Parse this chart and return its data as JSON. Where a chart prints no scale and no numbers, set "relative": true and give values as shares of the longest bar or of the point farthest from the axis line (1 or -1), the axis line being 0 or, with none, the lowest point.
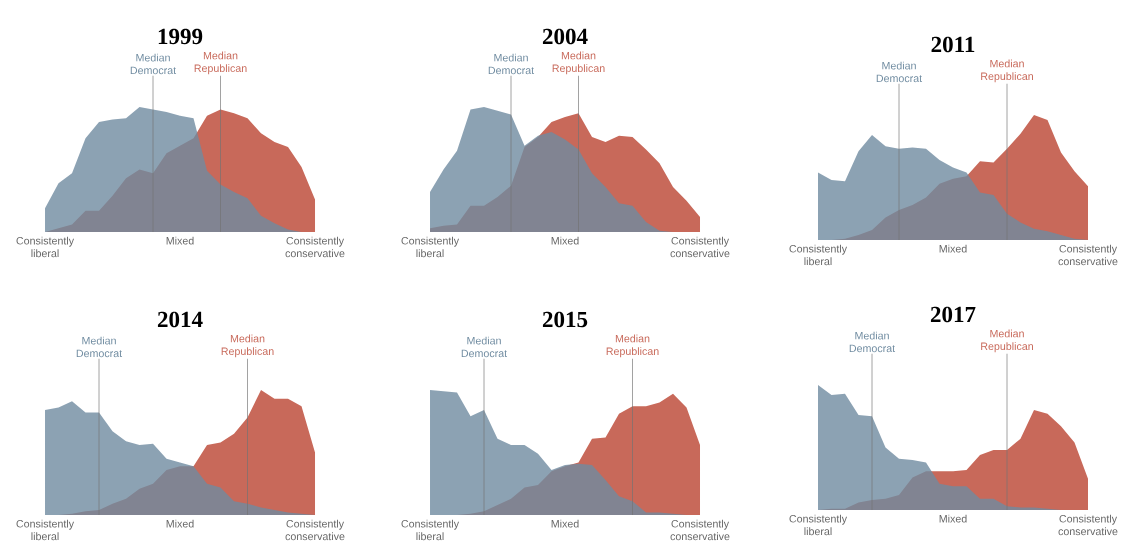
{
  "chart_data": [
    {
      "type": "area",
      "title": "1999",
      "relative": true,
      "categories": [
        "Consistently liberal",
        null,
        null,
        null,
        null,
        null,
        null,
        null,
        null,
        null,
        "Mixed",
        null,
        null,
        null,
        null,
        null,
        null,
        null,
        null,
        null,
        "Consistently conservative"
      ],
      "series": [
        {
          "color": "#c8695a",
          "values": [
            0,
            0.03,
            0.06,
            0.17,
            0.17,
            0.29,
            0.43,
            0.5,
            0.47,
            0.63,
            0.69,
            0.75,
            0.93,
            0.98,
            0.95,
            0.91,
            0.79,
            0.72,
            0.68,
            0.52,
            0.26
          ]
        },
        {
          "color": "#6f8ba0",
          "values": [
            0.19,
            0.39,
            0.47,
            0.75,
            0.88,
            0.9,
            0.91,
            1.0,
            0.98,
            0.96,
            0.93,
            0.91,
            0.49,
            0.38,
            0.32,
            0.27,
            0.13,
            0.07,
            0.02,
            0,
            0
          ]
        }
      ],
      "annotations": [
        "Median Democrat",
        "Median Republican"
      ]
    },
    {
      "type": "area",
      "title": "2004",
      "relative": true,
      "categories": [
        "Consistently liberal",
        null,
        null,
        null,
        null,
        null,
        null,
        null,
        null,
        null,
        "Mixed",
        null,
        null,
        null,
        null,
        null,
        null,
        null,
        null,
        null,
        "Consistently conservative"
      ],
      "series": [
        {
          "color": "#c8695a",
          "values": [
            0.03,
            0.05,
            0.06,
            0.21,
            0.21,
            0.28,
            0.37,
            0.68,
            0.76,
            0.88,
            0.92,
            0.95,
            0.76,
            0.72,
            0.77,
            0.76,
            0.66,
            0.55,
            0.36,
            0.25,
            0.12
          ]
        },
        {
          "color": "#6f8ba0",
          "values": [
            0.32,
            0.5,
            0.65,
            0.98,
            1.0,
            0.97,
            0.94,
            0.69,
            0.77,
            0.8,
            0.74,
            0.66,
            0.47,
            0.36,
            0.23,
            0.21,
            0.08,
            0.01,
            0,
            0,
            0
          ]
        }
      ],
      "annotations": [
        "Median Democrat",
        "Median Republican"
      ]
    },
    {
      "type": "area",
      "title": "2011",
      "relative": true,
      "categories": [
        "Consistently liberal",
        null,
        null,
        null,
        null,
        null,
        null,
        null,
        null,
        null,
        "Mixed",
        null,
        null,
        null,
        null,
        null,
        null,
        null,
        null,
        null,
        "Consistently conservative"
      ],
      "series": [
        {
          "color": "#c8695a",
          "values": [
            0,
            0,
            0.01,
            0.04,
            0.08,
            0.18,
            0.24,
            0.28,
            0.34,
            0.45,
            0.49,
            0.51,
            0.63,
            0.62,
            0.73,
            0.85,
            1.0,
            0.96,
            0.7,
            0.55,
            0.43
          ]
        },
        {
          "color": "#6f8ba0",
          "values": [
            0.54,
            0.48,
            0.47,
            0.71,
            0.84,
            0.75,
            0.73,
            0.74,
            0.73,
            0.64,
            0.58,
            0.54,
            0.38,
            0.36,
            0.21,
            0.14,
            0.09,
            0.07,
            0.04,
            0.01,
            0
          ]
        }
      ],
      "annotations": [
        "Median Democrat",
        "Median Republican"
      ]
    },
    {
      "type": "area",
      "title": "2014",
      "relative": true,
      "categories": [
        "Consistently liberal",
        null,
        null,
        null,
        null,
        null,
        null,
        null,
        null,
        null,
        "Mixed",
        null,
        null,
        null,
        null,
        null,
        null,
        null,
        null,
        null,
        "Consistently conservative"
      ],
      "series": [
        {
          "color": "#c8695a",
          "values": [
            0,
            0,
            0.01,
            0.03,
            0.04,
            0.09,
            0.13,
            0.21,
            0.25,
            0.36,
            0.39,
            0.39,
            0.56,
            0.58,
            0.65,
            0.78,
            1.0,
            0.93,
            0.93,
            0.87,
            0.5
          ]
        },
        {
          "color": "#6f8ba0",
          "values": [
            0.84,
            0.86,
            0.91,
            0.82,
            0.82,
            0.67,
            0.59,
            0.56,
            0.57,
            0.45,
            0.42,
            0.39,
            0.25,
            0.22,
            0.11,
            0.09,
            0.06,
            0.04,
            0.02,
            0.01,
            0
          ]
        }
      ],
      "annotations": [
        "Median Democrat",
        "Median Republican"
      ]
    },
    {
      "type": "area",
      "title": "2015",
      "relative": true,
      "categories": [
        "Consistently liberal",
        null,
        null,
        null,
        null,
        null,
        null,
        null,
        null,
        null,
        "Mixed",
        null,
        null,
        null,
        null,
        null,
        null,
        null,
        null,
        null,
        "Consistently conservative"
      ],
      "series": [
        {
          "color": "#c8695a",
          "values": [
            0,
            0,
            0,
            0.01,
            0.03,
            0.08,
            0.13,
            0.22,
            0.24,
            0.35,
            0.39,
            0.42,
            0.61,
            0.62,
            0.81,
            0.87,
            0.87,
            0.9,
            0.97,
            0.86,
            0.56
          ]
        },
        {
          "color": "#6f8ba0",
          "values": [
            1.0,
            0.99,
            0.98,
            0.79,
            0.84,
            0.61,
            0.56,
            0.56,
            0.49,
            0.36,
            0.4,
            0.41,
            0.4,
            0.28,
            0.15,
            0.11,
            0.02,
            0.02,
            0.01,
            0,
            0
          ]
        }
      ],
      "annotations": [
        "Median Democrat",
        "Median Republican"
      ]
    },
    {
      "type": "area",
      "title": "2017",
      "relative": true,
      "categories": [
        "Consistently liberal",
        null,
        null,
        null,
        null,
        null,
        null,
        null,
        null,
        null,
        "Mixed",
        null,
        null,
        null,
        null,
        null,
        null,
        null,
        null,
        null,
        "Consistently conservative"
      ],
      "series": [
        {
          "color": "#c8695a",
          "values": [
            0,
            0.01,
            0.01,
            0.06,
            0.08,
            0.09,
            0.12,
            0.26,
            0.31,
            0.31,
            0.31,
            0.32,
            0.44,
            0.48,
            0.48,
            0.57,
            0.8,
            0.77,
            0.67,
            0.54,
            0.25
          ]
        },
        {
          "color": "#6f8ba0",
          "values": [
            1.0,
            0.92,
            0.93,
            0.76,
            0.75,
            0.5,
            0.41,
            0.4,
            0.38,
            0.21,
            0.19,
            0.19,
            0.09,
            0.09,
            0.03,
            0.02,
            0.02,
            0.01,
            0,
            0,
            0
          ]
        }
      ],
      "annotations": [
        "Median Democrat",
        "Median Republican"
      ]
    }
  ]
}
